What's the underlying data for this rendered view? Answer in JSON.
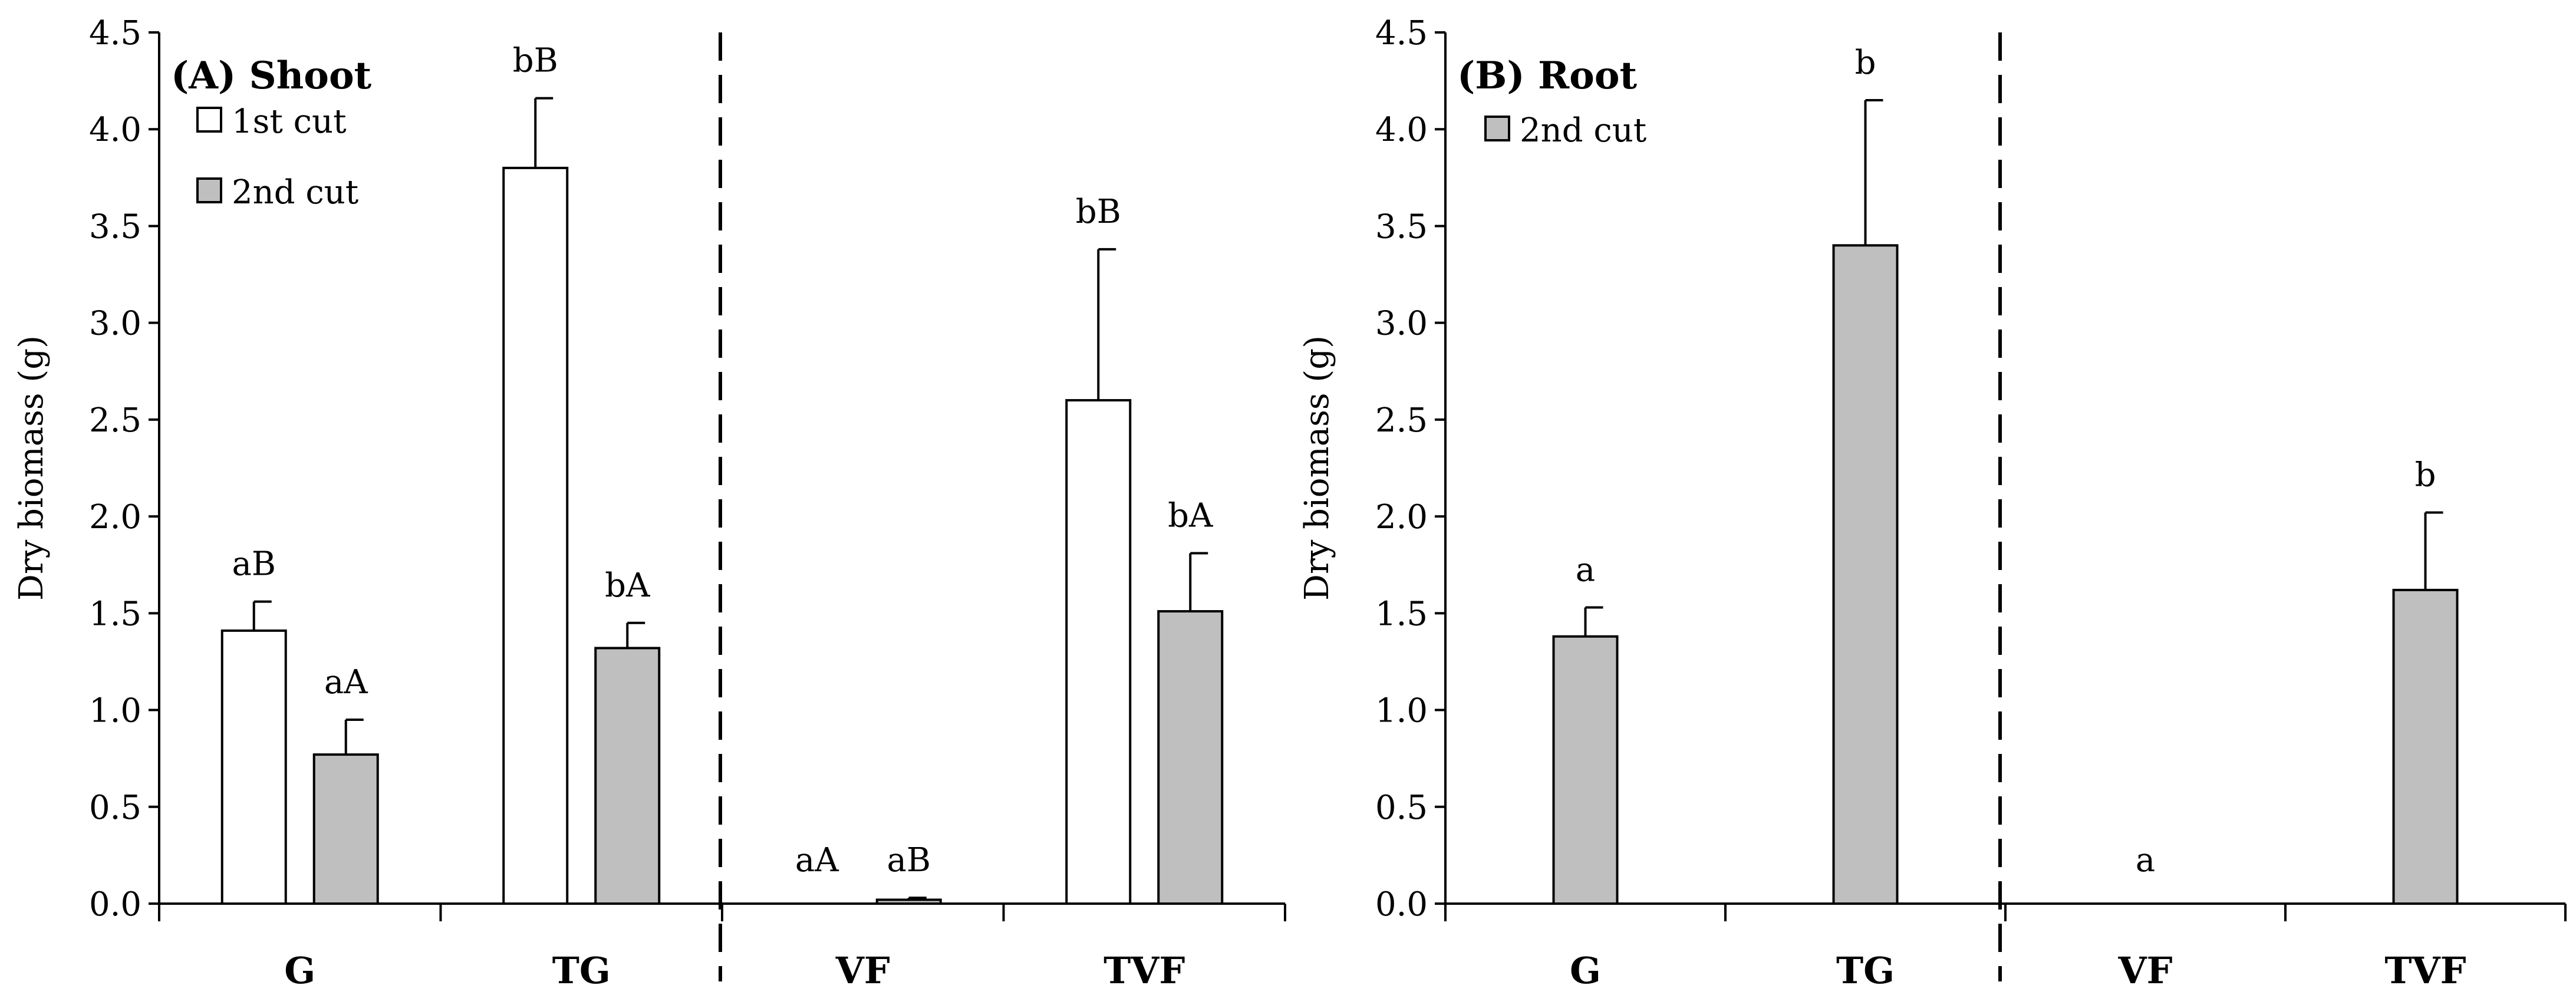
{
  "chart_data": [
    {
      "type": "bar",
      "title": "(A) Shoot",
      "ylabel": "Dry biomass (g)",
      "xlabel": "",
      "ylim": [
        0,
        4.5
      ],
      "yticks": [
        "0.0",
        "0.5",
        "1.0",
        "1.5",
        "2.0",
        "2.5",
        "3.0",
        "3.5",
        "4.0",
        "4.5"
      ],
      "categories": [
        "G",
        "TG",
        "VF",
        "TVF"
      ],
      "legend_position": "top-left",
      "series": [
        {
          "name": "1st cut",
          "fill": "#ffffff",
          "values": [
            1.41,
            3.8,
            0.0,
            2.6
          ],
          "errors": [
            0.15,
            0.36,
            0.0,
            0.78
          ],
          "labels": [
            "aB",
            "bB",
            "aA",
            "bB"
          ]
        },
        {
          "name": "2nd cut",
          "fill": "#bfbfbf",
          "values": [
            0.77,
            1.32,
            0.02,
            1.51
          ],
          "errors": [
            0.18,
            0.13,
            0.01,
            0.3
          ],
          "labels": [
            "aA",
            "bA",
            "aB",
            "bA"
          ]
        }
      ]
    },
    {
      "type": "bar",
      "title": "(B) Root",
      "ylabel": "Dry biomass (g)",
      "xlabel": "",
      "ylim": [
        0,
        4.5
      ],
      "yticks": [
        "0.0",
        "0.5",
        "1.0",
        "1.5",
        "2.0",
        "2.5",
        "3.0",
        "3.5",
        "4.0",
        "4.5"
      ],
      "categories": [
        "G",
        "TG",
        "VF",
        "TVF"
      ],
      "legend_position": "top-left",
      "series": [
        {
          "name": "2nd cut",
          "fill": "#bfbfbf",
          "values": [
            1.38,
            3.4,
            0.0,
            1.62
          ],
          "errors": [
            0.15,
            0.75,
            0.0,
            0.4
          ],
          "labels": [
            "a",
            "b",
            "a",
            "b"
          ]
        }
      ]
    }
  ]
}
